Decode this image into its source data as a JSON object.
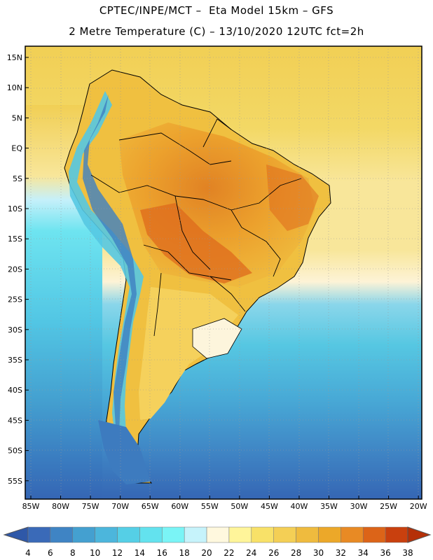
{
  "title": {
    "line1": "CPTEC/INPE/MCT –  Eta Model 15km – GFS",
    "line2": "2 Metre Temperature (C) – 13/10/2020 12UTC fct=2h"
  },
  "map": {
    "lat_ticks": [
      "15N",
      "10N",
      "5N",
      "EQ",
      "5S",
      "10S",
      "15S",
      "20S",
      "25S",
      "30S",
      "35S",
      "40S",
      "45S",
      "50S",
      "55S"
    ],
    "lon_ticks": [
      "85W",
      "80W",
      "75W",
      "70W",
      "65W",
      "60W",
      "55W",
      "50W",
      "45W",
      "40W",
      "35W",
      "30W",
      "25W",
      "20W"
    ],
    "grid": "dotted"
  },
  "colorbar": {
    "labels": [
      "4",
      "6",
      "8",
      "10",
      "12",
      "14",
      "16",
      "18",
      "20",
      "22",
      "24",
      "26",
      "28",
      "30",
      "32",
      "34",
      "36",
      "38"
    ],
    "colors": [
      "#3a6ab8",
      "#3f84c4",
      "#44a0d0",
      "#4cb6dc",
      "#55cfe6",
      "#63e2ee",
      "#7af4f6",
      "#c6f3fb",
      "#fff8de",
      "#fff59a",
      "#f8e168",
      "#f4cf55",
      "#efbb3e",
      "#eca829",
      "#e88a24",
      "#dc6418",
      "#c9400e"
    ],
    "left_arrow_color": "#2f58a8",
    "right_arrow_color": "#b53008"
  }
}
